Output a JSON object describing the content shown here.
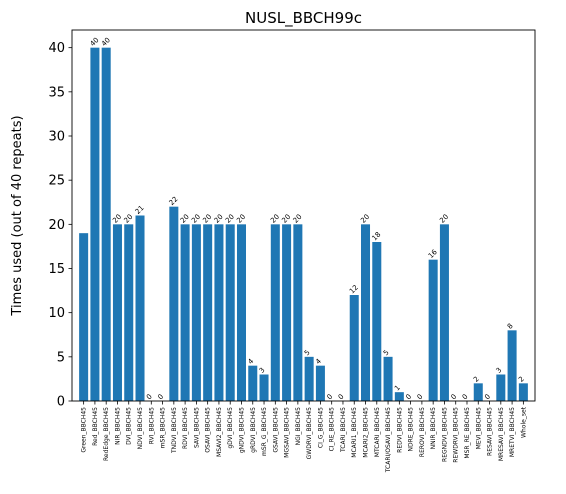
{
  "chart_data": {
    "type": "bar",
    "title": "NUSL_BBCH99c",
    "xlabel": "",
    "ylabel": "Times used (out of 40 repeats)",
    "ylim": [
      0,
      42
    ],
    "yticks": [
      0,
      5,
      10,
      15,
      20,
      25,
      30,
      35,
      40
    ],
    "bar_color": "#1f77b4",
    "categories": [
      "Green_BBCH45",
      "Red_BBCH45",
      "RedEdge_BBCH45",
      "NIR_BBCH45",
      "DVI_BBCH45",
      "NDVI_BBCH45",
      "RVI_BBCH45",
      "mSR_BBCH45",
      "TNDVI_BBCH45",
      "RDVI_BBCH45",
      "SAVI_BBCH45",
      "OSAVI_BBCH45",
      "MSAVI2_BBCH45",
      "gDVI_BBCH45",
      "gNDVI_BBCH45",
      "gRDVI_BBCH45",
      "mSR_G_BBCH45",
      "GSAVI_BBCH45",
      "MGSAVI_BBCH45",
      "NGI_BBCH45",
      "GWDRVI_BBCH45",
      "CI_G_BBCH45",
      "CI_RE_BBCH45",
      "TCARI_BBCH45",
      "MCARI1_BBCH45",
      "MCARI2_BBCH45",
      "MTCARI_BBCH45",
      "TCARI/OSAVI_BBCH45",
      "REDVI_BBCH45",
      "NDRE_BBCH45",
      "REROVI_BBCH45",
      "NNIR_BBCH45",
      "REGNDVI_BBCH45",
      "REWDRVI_BBCH45",
      "MSR_RE_BBCH45",
      "MEVI_BBCH45",
      "RESAVI_BBCH45",
      "MRESAVI_BBCH45",
      "MRETVI_BBCH45",
      "Whole_set"
    ],
    "values": [
      19,
      40,
      40,
      20,
      20,
      21,
      0,
      0,
      22,
      20,
      20,
      20,
      20,
      20,
      20,
      4,
      3,
      20,
      20,
      20,
      5,
      4,
      0,
      0,
      12,
      20,
      18,
      5,
      1,
      0,
      0,
      16,
      20,
      0,
      0,
      2,
      0,
      3,
      8,
      2
    ],
    "data_labels": [
      "",
      "40",
      "40",
      "20",
      "20",
      "21",
      "0",
      "0",
      "22",
      "20",
      "20",
      "20",
      "20",
      "20",
      "20",
      "4",
      "3",
      "20",
      "20",
      "20",
      "5",
      "4",
      "0",
      "0",
      "12",
      "20",
      "18",
      "5",
      "1",
      "0",
      "0",
      "16",
      "20",
      "0",
      "0",
      "2",
      "0",
      "3",
      "8",
      "2"
    ]
  }
}
